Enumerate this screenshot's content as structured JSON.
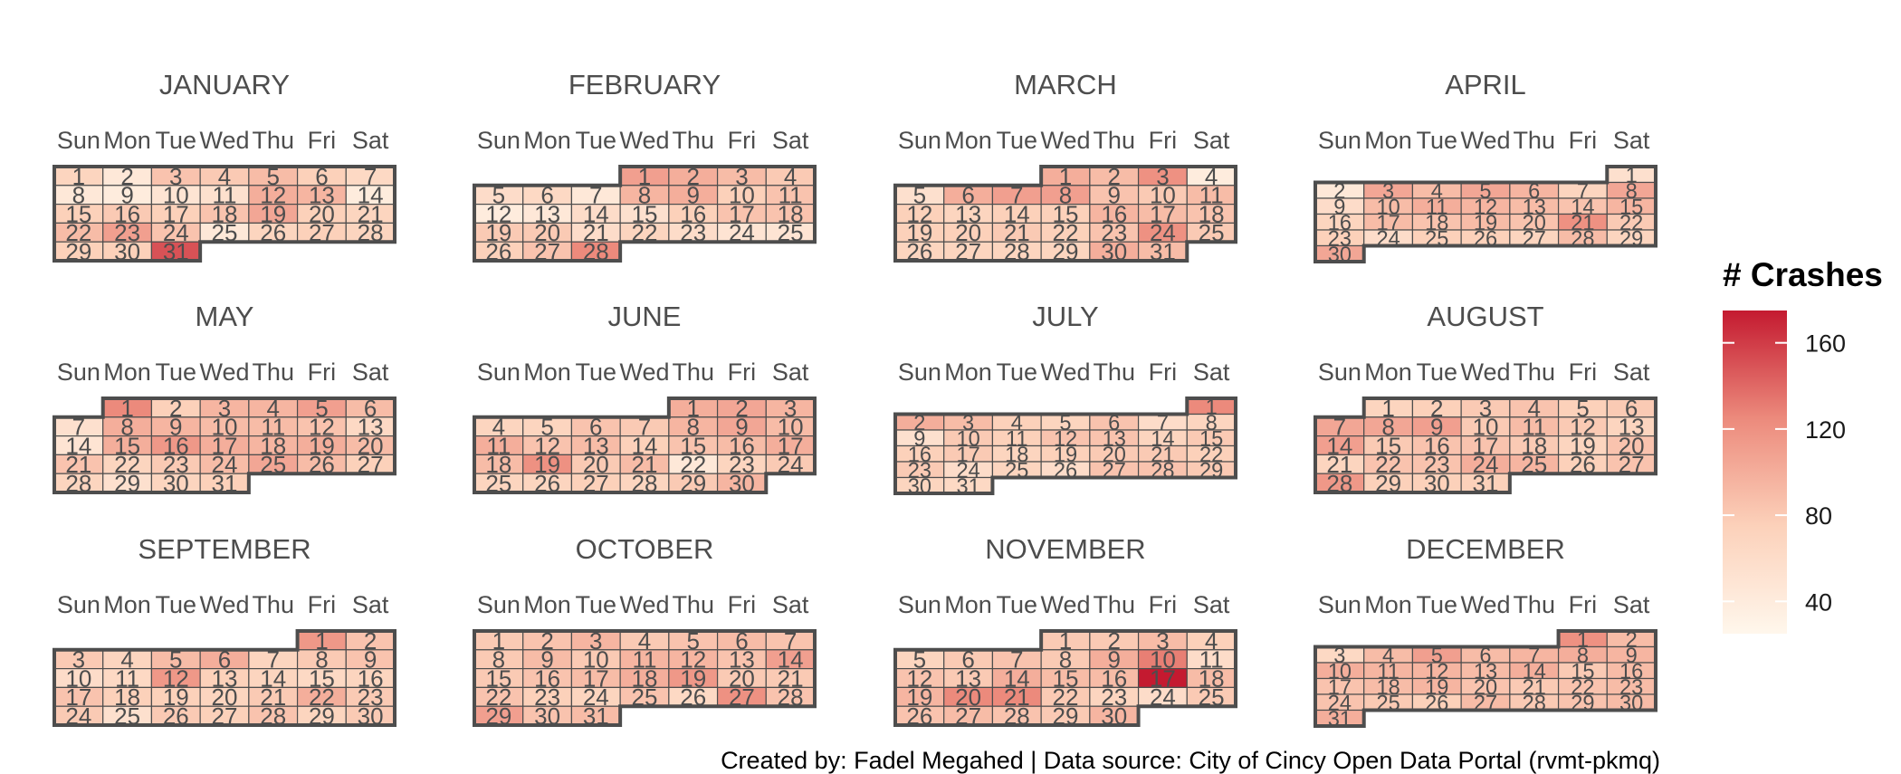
{
  "chart_data": {
    "type": "heatmap",
    "title": "",
    "weekdays": [
      "Sun",
      "Mon",
      "Tue",
      "Wed",
      "Thu",
      "Fri",
      "Sat"
    ],
    "legend": {
      "title": "# Crashes",
      "ticks": [
        40,
        80,
        120,
        160
      ],
      "range": [
        25,
        175
      ],
      "colors": [
        "#fff7ec",
        "#fcd1ba",
        "#ec8a7c",
        "#c41a30"
      ]
    },
    "caption": "Created by: Fadel Megahed | Data source: City of Cincy Open Data Portal (rvmt-pkmq)",
    "months": [
      {
        "name": "JANUARY",
        "start": 0,
        "values": [
          70,
          45,
          85,
          80,
          90,
          75,
          65,
          45,
          40,
          50,
          55,
          100,
          95,
          40,
          75,
          80,
          75,
          85,
          105,
          75,
          70,
          90,
          110,
          85,
          45,
          70,
          75,
          70,
          75,
          75,
          150
        ]
      },
      {
        "name": "FEBRUARY",
        "start": 3,
        "values": [
          110,
          100,
          90,
          80,
          60,
          65,
          45,
          95,
          100,
          75,
          85,
          40,
          45,
          60,
          55,
          75,
          85,
          85,
          80,
          80,
          60,
          70,
          60,
          50,
          50,
          75,
          85,
          125
        ]
      },
      {
        "name": "MARCH",
        "start": 3,
        "values": [
          100,
          90,
          120,
          40,
          55,
          100,
          110,
          110,
          85,
          80,
          90,
          75,
          70,
          75,
          75,
          95,
          90,
          85,
          75,
          75,
          80,
          75,
          85,
          120,
          80,
          70,
          70,
          70,
          70,
          100,
          90
        ]
      },
      {
        "name": "APRIL",
        "start": 6,
        "values": [
          55,
          45,
          105,
          90,
          105,
          95,
          70,
          105,
          60,
          90,
          100,
          95,
          90,
          85,
          95,
          70,
          90,
          85,
          90,
          85,
          120,
          80,
          75,
          60,
          75,
          75,
          70,
          90,
          70,
          105
        ]
      },
      {
        "name": "MAY",
        "start": 1,
        "values": [
          125,
          75,
          95,
          95,
          110,
          90,
          55,
          100,
          95,
          90,
          90,
          85,
          65,
          50,
          100,
          115,
          100,
          95,
          100,
          90,
          85,
          70,
          80,
          90,
          105,
          90,
          75,
          70,
          55,
          70,
          75
        ]
      },
      {
        "name": "JUNE",
        "start": 4,
        "values": [
          100,
          105,
          95,
          70,
          70,
          85,
          80,
          95,
          105,
          90,
          100,
          85,
          90,
          75,
          85,
          90,
          100,
          90,
          120,
          80,
          90,
          45,
          70,
          80,
          70,
          70,
          75,
          70,
          80,
          95
        ]
      },
      {
        "name": "JULY",
        "start": 6,
        "values": [
          125,
          100,
          90,
          75,
          70,
          85,
          60,
          70,
          55,
          80,
          75,
          85,
          85,
          70,
          80,
          75,
          80,
          70,
          75,
          80,
          80,
          75,
          80,
          60,
          70,
          60,
          85,
          85,
          80,
          70,
          65
        ]
      },
      {
        "name": "AUGUST",
        "start": 1,
        "values": [
          70,
          75,
          80,
          85,
          75,
          80,
          105,
          105,
          110,
          80,
          90,
          80,
          70,
          110,
          80,
          85,
          85,
          80,
          70,
          85,
          70,
          85,
          85,
          100,
          95,
          75,
          85,
          115,
          75,
          75,
          75
        ]
      },
      {
        "name": "SEPTEMBER",
        "start": 5,
        "values": [
          115,
          85,
          80,
          70,
          90,
          100,
          70,
          80,
          85,
          60,
          65,
          115,
          75,
          70,
          65,
          70,
          85,
          75,
          75,
          70,
          80,
          100,
          80,
          80,
          55,
          80,
          75,
          85,
          70,
          80
        ]
      },
      {
        "name": "OCTOBER",
        "start": 0,
        "values": [
          80,
          85,
          95,
          80,
          85,
          90,
          85,
          80,
          90,
          80,
          95,
          95,
          85,
          110,
          80,
          85,
          90,
          100,
          115,
          80,
          80,
          85,
          75,
          70,
          85,
          65,
          120,
          85,
          110,
          85,
          90
        ]
      },
      {
        "name": "NOVEMBER",
        "start": 3,
        "values": [
          80,
          80,
          90,
          75,
          70,
          80,
          85,
          80,
          100,
          130,
          60,
          85,
          80,
          100,
          90,
          90,
          175,
          90,
          95,
          125,
          125,
          80,
          70,
          60,
          80,
          85,
          90,
          85,
          80,
          95
        ]
      },
      {
        "name": "DECEMBER",
        "start": 5,
        "values": [
          120,
          90,
          65,
          90,
          110,
          90,
          95,
          100,
          95,
          100,
          95,
          95,
          90,
          100,
          80,
          90,
          85,
          90,
          95,
          85,
          80,
          85,
          90,
          85,
          80,
          75,
          90,
          80,
          85,
          90,
          100
        ]
      }
    ]
  }
}
